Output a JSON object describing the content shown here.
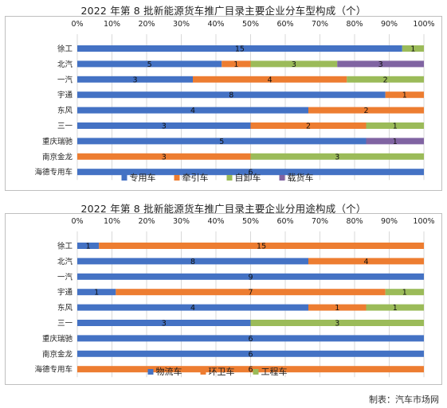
{
  "credit": "制表：汽车市场网",
  "chart_data": [
    {
      "type": "bar",
      "orientation": "horizontal",
      "stacked": "percent",
      "title": "2022 年第 8 批新能源货车推广目录主要企业分车型构成（个）",
      "categories": [
        "徐工",
        "北汽",
        "一汽",
        "宇通",
        "东风",
        "三一",
        "重庆瑞驰",
        "南京金龙",
        "海德专用车"
      ],
      "x_ticks": [
        "0%",
        "10%",
        "20%",
        "30%",
        "40%",
        "50%",
        "60%",
        "70%",
        "80%",
        "90%",
        "100%"
      ],
      "xlim": [
        0,
        100
      ],
      "grid": true,
      "legend_position": "bottom",
      "series": [
        {
          "name": "专用车",
          "color": "#4472c4",
          "values": [
            15,
            5,
            3,
            8,
            4,
            3,
            5,
            0,
            6
          ]
        },
        {
          "name": "牵引车",
          "color": "#ed7d31",
          "values": [
            0,
            1,
            4,
            1,
            2,
            2,
            0,
            3,
            0
          ]
        },
        {
          "name": "自卸车",
          "color": "#9bbb59",
          "values": [
            1,
            3,
            2,
            0,
            0,
            1,
            0,
            3,
            0
          ]
        },
        {
          "name": "载货车",
          "color": "#8064a2",
          "values": [
            0,
            3,
            0,
            0,
            0,
            0,
            1,
            0,
            0
          ]
        }
      ]
    },
    {
      "type": "bar",
      "orientation": "horizontal",
      "stacked": "percent",
      "title": "2022 年第 8 批新能源货车推广目录主要企业分用途构成（个）",
      "categories": [
        "徐工",
        "北汽",
        "一汽",
        "宇通",
        "东风",
        "三一",
        "重庆瑞驰",
        "南京金龙",
        "海德专用车"
      ],
      "x_ticks": [
        "0%",
        "10%",
        "20%",
        "30%",
        "40%",
        "50%",
        "60%",
        "70%",
        "80%",
        "90%",
        "100%"
      ],
      "xlim": [
        0,
        100
      ],
      "grid": true,
      "legend_position": "bottom",
      "series": [
        {
          "name": "物流车",
          "color": "#4472c4",
          "values": [
            1,
            8,
            9,
            1,
            4,
            3,
            6,
            6,
            0
          ]
        },
        {
          "name": "环卫车",
          "color": "#ed7d31",
          "values": [
            15,
            4,
            0,
            7,
            1,
            0,
            0,
            0,
            6
          ]
        },
        {
          "name": "工程车",
          "color": "#9bbb59",
          "values": [
            0,
            0,
            0,
            1,
            1,
            3,
            0,
            0,
            0
          ]
        }
      ]
    }
  ]
}
